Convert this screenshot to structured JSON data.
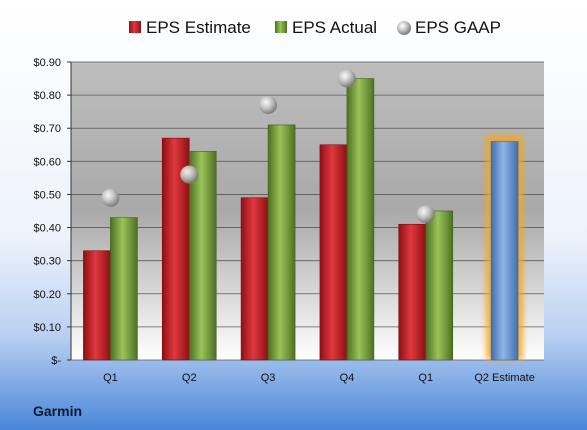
{
  "company": "Garmin",
  "colors": {
    "estimate": "#c0262b",
    "actual": "#6e9a35",
    "gaap": "#b8b8b8",
    "forecast": "#6f9fd8",
    "forecast_glow": "#f5a623"
  },
  "chart_data": {
    "type": "bar",
    "categories": [
      "Q1",
      "Q2",
      "Q3",
      "Q4",
      "Q1",
      "Q2 Estimate"
    ],
    "series": [
      {
        "name": "EPS Estimate",
        "values": [
          0.33,
          0.67,
          0.49,
          0.65,
          0.41,
          0.66
        ]
      },
      {
        "name": "EPS Actual",
        "values": [
          0.43,
          0.63,
          0.71,
          0.85,
          0.45,
          null
        ]
      },
      {
        "name": "EPS GAAP",
        "values": [
          0.49,
          0.56,
          0.77,
          0.85,
          0.44,
          null
        ]
      }
    ],
    "ylim": [
      0,
      0.9
    ],
    "yticks": [
      {
        "value": 0.9,
        "label": "$0.90"
      },
      {
        "value": 0.8,
        "label": "$0.80"
      },
      {
        "value": 0.7,
        "label": "$0.70"
      },
      {
        "value": 0.6,
        "label": "$0.60"
      },
      {
        "value": 0.5,
        "label": "$0.50"
      },
      {
        "value": 0.4,
        "label": "$0.40"
      },
      {
        "value": 0.3,
        "label": "$0.30"
      },
      {
        "value": 0.2,
        "label": "$0.20"
      },
      {
        "value": 0.1,
        "label": "$0.10"
      },
      {
        "value": 0.0,
        "label": "$-"
      }
    ],
    "highlighted_category": "Q2 Estimate",
    "grid": true,
    "legend_position": "top"
  }
}
